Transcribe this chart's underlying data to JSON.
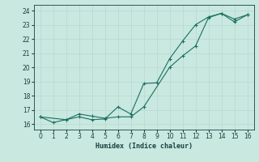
{
  "xlabel": "Humidex (Indice chaleur)",
  "ylabel": "",
  "background_color": "#c8e8e0",
  "grid_color": "#b8d8d0",
  "line_color": "#1a7060",
  "xlim": [
    -0.5,
    16.5
  ],
  "ylim": [
    15.6,
    24.4
  ],
  "xticks": [
    0,
    1,
    2,
    3,
    4,
    5,
    6,
    7,
    8,
    9,
    10,
    11,
    12,
    13,
    14,
    15,
    16
  ],
  "yticks": [
    16,
    17,
    18,
    19,
    20,
    21,
    22,
    23,
    24
  ],
  "line1_x": [
    0,
    1,
    2,
    3,
    4,
    5,
    6,
    7,
    8,
    9,
    10,
    11,
    12,
    13,
    14,
    15,
    16
  ],
  "line1_y": [
    16.5,
    16.1,
    16.3,
    16.5,
    16.3,
    16.35,
    17.2,
    16.7,
    18.85,
    18.9,
    20.6,
    21.85,
    23.0,
    23.55,
    23.8,
    23.2,
    23.7
  ],
  "line2_x": [
    0,
    2,
    3,
    4,
    5,
    6,
    7,
    8,
    10,
    11,
    12,
    13,
    14,
    15,
    16
  ],
  "line2_y": [
    16.5,
    16.3,
    16.7,
    16.55,
    16.4,
    16.5,
    16.5,
    17.2,
    20.0,
    20.8,
    21.5,
    23.5,
    23.8,
    23.4,
    23.7
  ]
}
